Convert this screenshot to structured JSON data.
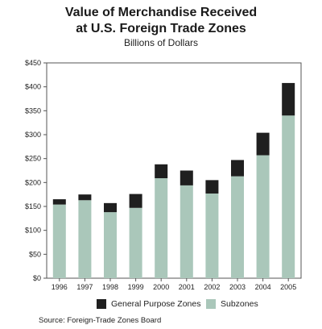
{
  "chart_data": {
    "type": "bar",
    "stacked": true,
    "title_line1": "Value of Merchandise Received",
    "title_line2": "at U.S. Foreign Trade Zones",
    "subtitle": "Billions of Dollars",
    "categories": [
      "1996",
      "1997",
      "1998",
      "1999",
      "2000",
      "2001",
      "2002",
      "2003",
      "2004",
      "2005"
    ],
    "series": [
      {
        "name": "Subzones",
        "color": "#aac7ba",
        "values": [
          154,
          163,
          138,
          147,
          209,
          194,
          177,
          213,
          257,
          340
        ]
      },
      {
        "name": "General Purpose Zones",
        "color": "#1f1f1f",
        "values": [
          11,
          12,
          19,
          29,
          29,
          31,
          28,
          34,
          47,
          68
        ]
      }
    ],
    "yticks": [
      "$0",
      "$50",
      "$100",
      "$150",
      "$200",
      "$250",
      "$300",
      "$350",
      "$400",
      "$450"
    ],
    "ylim": [
      0,
      450
    ],
    "grid": false,
    "legend_position": "bottom",
    "source": "Source: Foreign-Trade Zones Board"
  }
}
